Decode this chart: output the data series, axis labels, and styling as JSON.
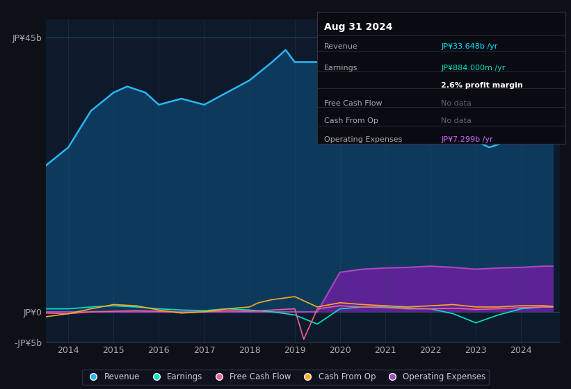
{
  "bg_color": "#0d1117",
  "chart_bg": "#0d1a2b",
  "title_box": {
    "date": "Aug 31 2024",
    "rows": [
      {
        "label": "Revenue",
        "value": "JP¥33.648b /yr",
        "value_color": "#00e5ff",
        "text_color": "#aaaaaa"
      },
      {
        "label": "Earnings",
        "value": "JP¥884.000m /yr",
        "value_color": "#00e5c0",
        "text_color": "#aaaaaa"
      },
      {
        "label": "",
        "value": "2.6% profit margin",
        "value_color": "#ffffff",
        "text_color": "#aaaaaa"
      },
      {
        "label": "Free Cash Flow",
        "value": "No data",
        "value_color": "#666666",
        "text_color": "#aaaaaa"
      },
      {
        "label": "Cash From Op",
        "value": "No data",
        "value_color": "#666666",
        "text_color": "#aaaaaa"
      },
      {
        "label": "Operating Expenses",
        "value": "JP¥7.299b /yr",
        "value_color": "#cc66ff",
        "text_color": "#aaaaaa"
      }
    ]
  },
  "y_label_top": "JP¥45b",
  "y_label_zero": "JP¥0",
  "y_label_neg": "-JP¥5b",
  "x_labels": [
    "2014",
    "2015",
    "2016",
    "2017",
    "2018",
    "2019",
    "2020",
    "2021",
    "2022",
    "2023",
    "2024"
  ],
  "ylim": [
    -5,
    48
  ],
  "revenue": {
    "x": [
      2013.5,
      2014.0,
      2014.5,
      2015.0,
      2015.3,
      2015.7,
      2016.0,
      2016.5,
      2017.0,
      2017.5,
      2018.0,
      2018.5,
      2018.8,
      2019.0,
      2019.5,
      2020.0,
      2020.5,
      2021.0,
      2021.5,
      2022.0,
      2022.5,
      2023.0,
      2023.3,
      2023.7,
      2024.0,
      2024.5,
      2024.7
    ],
    "y": [
      24,
      27,
      33,
      36,
      37,
      36,
      34,
      35,
      34,
      36,
      38,
      41,
      43,
      41,
      41,
      39,
      37,
      36,
      35,
      34,
      31,
      28,
      27,
      28,
      30,
      33,
      34
    ],
    "color": "#29b6f6",
    "fill_color": "#0d3a5c",
    "linewidth": 1.8
  },
  "earnings": {
    "x": [
      2013.5,
      2014.0,
      2014.5,
      2015.0,
      2015.5,
      2016.0,
      2016.5,
      2017.0,
      2017.5,
      2018.0,
      2018.5,
      2019.0,
      2019.5,
      2020.0,
      2020.5,
      2021.0,
      2021.5,
      2022.0,
      2022.5,
      2023.0,
      2023.5,
      2024.0,
      2024.5,
      2024.7
    ],
    "y": [
      0.5,
      0.5,
      0.8,
      1.0,
      0.8,
      0.5,
      0.3,
      0.2,
      0.5,
      0.3,
      0.0,
      -0.5,
      -2.0,
      0.5,
      0.8,
      0.8,
      0.6,
      0.5,
      -0.3,
      -1.8,
      -0.5,
      0.5,
      0.8,
      0.8
    ],
    "color": "#00e5c0",
    "linewidth": 1.2
  },
  "free_cash_flow": {
    "x": [
      2013.5,
      2014.0,
      2014.5,
      2015.0,
      2015.5,
      2016.0,
      2016.5,
      2017.0,
      2017.5,
      2018.0,
      2018.5,
      2019.0,
      2019.2,
      2019.5,
      2020.0,
      2020.5,
      2021.0,
      2021.5,
      2022.0,
      2022.5,
      2023.0,
      2023.5,
      2024.0,
      2024.5,
      2024.7
    ],
    "y": [
      -0.2,
      -0.3,
      0.0,
      0.1,
      0.2,
      0.1,
      -0.1,
      0.0,
      0.2,
      0.1,
      0.3,
      0.5,
      -4.5,
      0.5,
      1.0,
      0.8,
      0.7,
      0.5,
      0.5,
      0.6,
      0.4,
      0.5,
      0.7,
      0.8,
      0.8
    ],
    "color": "#f06292",
    "linewidth": 1.2
  },
  "cash_from_op": {
    "x": [
      2013.5,
      2014.0,
      2014.5,
      2015.0,
      2015.5,
      2016.0,
      2016.5,
      2017.0,
      2017.5,
      2018.0,
      2018.2,
      2018.5,
      2019.0,
      2019.5,
      2020.0,
      2020.5,
      2021.0,
      2021.5,
      2022.0,
      2022.5,
      2023.0,
      2023.5,
      2024.0,
      2024.5,
      2024.7
    ],
    "y": [
      -0.8,
      -0.3,
      0.5,
      1.2,
      1.0,
      0.3,
      -0.2,
      0.0,
      0.5,
      0.8,
      1.5,
      2.0,
      2.5,
      0.8,
      1.5,
      1.2,
      1.0,
      0.8,
      1.0,
      1.2,
      0.8,
      0.8,
      1.0,
      1.0,
      0.9
    ],
    "color": "#ffa726",
    "linewidth": 1.2
  },
  "operating_expenses": {
    "x": [
      2013.5,
      2019.5,
      2020.0,
      2020.5,
      2021.0,
      2021.5,
      2022.0,
      2022.5,
      2023.0,
      2023.5,
      2024.0,
      2024.5,
      2024.7
    ],
    "y": [
      0,
      0,
      6.5,
      7.0,
      7.2,
      7.3,
      7.5,
      7.3,
      7.0,
      7.2,
      7.3,
      7.5,
      7.5
    ],
    "color": "#ab47bc",
    "fill_color": "#6a1fa0",
    "linewidth": 1.5
  },
  "legend": [
    {
      "label": "Revenue",
      "color": "#29b6f6"
    },
    {
      "label": "Earnings",
      "color": "#00e5c0"
    },
    {
      "label": "Free Cash Flow",
      "color": "#f06292"
    },
    {
      "label": "Cash From Op",
      "color": "#ffa726"
    },
    {
      "label": "Operating Expenses",
      "color": "#ab47bc"
    }
  ]
}
